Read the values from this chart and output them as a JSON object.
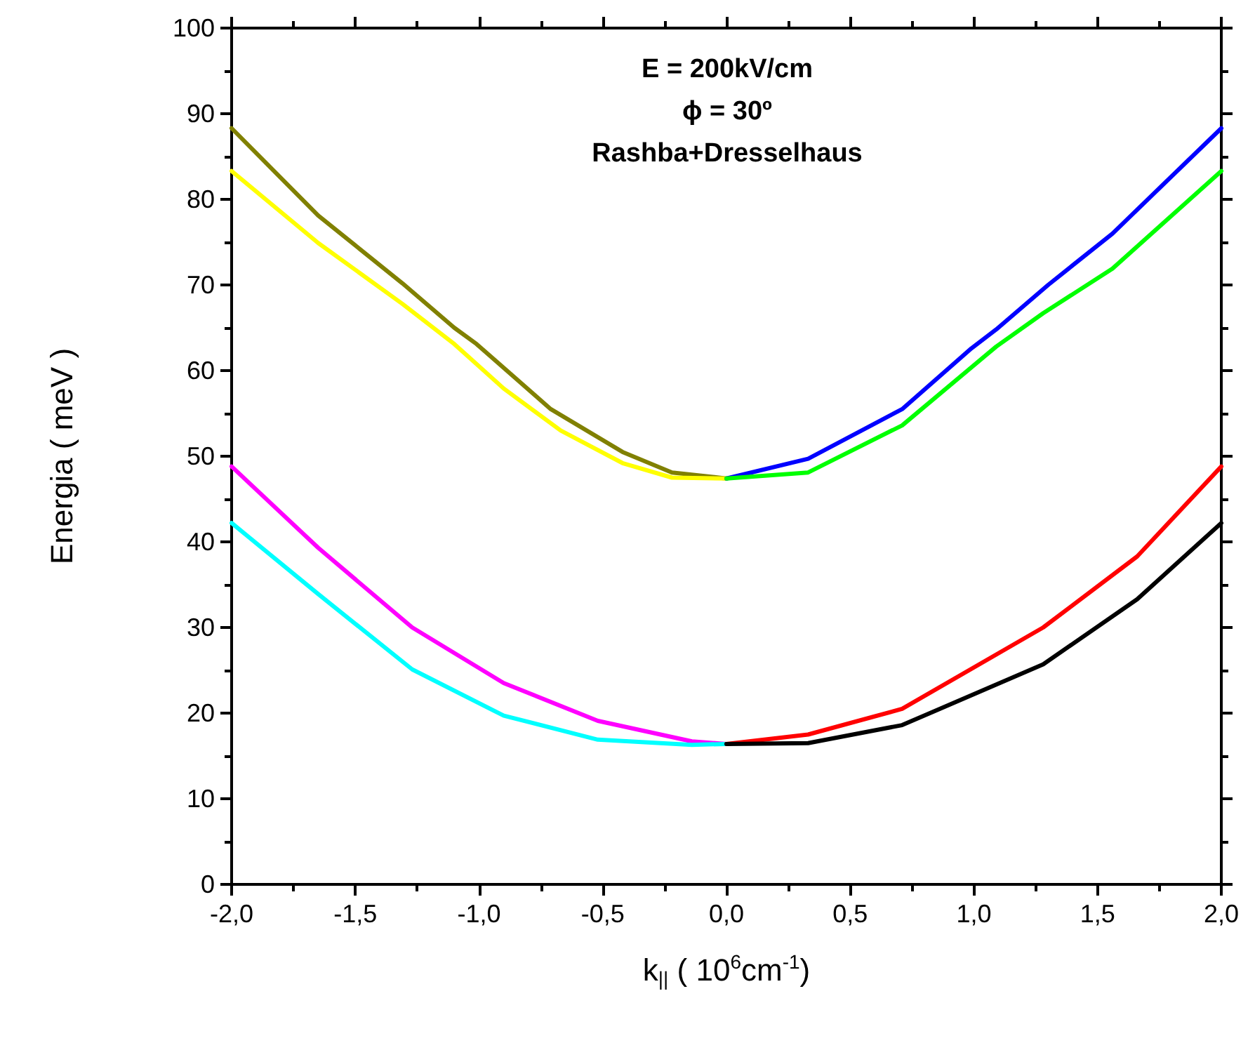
{
  "chart_data": {
    "type": "line",
    "xlabel": "k$_{||}$ ( 10$^{6}$cm$^{-1}$)",
    "ylabel": "Energia ( meV )",
    "annotations": [
      "E = 200kV/cm",
      "ϕ = 30º",
      "Rashba+Dresselhaus"
    ],
    "xlim": [
      -2,
      2
    ],
    "ylim": [
      0,
      100
    ],
    "xticks": [
      {
        "value": -2,
        "label": "-2,0"
      },
      {
        "value": -1.5,
        "label": "-1,5"
      },
      {
        "value": -1,
        "label": "-1,0"
      },
      {
        "value": -0.5,
        "label": "-0,5"
      },
      {
        "value": 0,
        "label": "0,0"
      },
      {
        "value": 0.5,
        "label": "0,5"
      },
      {
        "value": 1,
        "label": "1,0"
      },
      {
        "value": 1.5,
        "label": "1,5"
      },
      {
        "value": 2,
        "label": "2,0"
      }
    ],
    "yticks": [
      0,
      10,
      20,
      30,
      40,
      50,
      60,
      70,
      80,
      90,
      100
    ],
    "grid": false,
    "legend": false,
    "marker": "none",
    "line_style": "solid",
    "series": [
      {
        "color": "#808000",
        "x": [
          -2,
          -1.65,
          -1.31,
          -1.1,
          -1.01,
          -0.71,
          -0.42,
          -0.22,
          0
        ],
        "values": [
          88.3,
          78.1,
          70.2,
          65.0,
          63.1,
          55.5,
          50.5,
          48.1,
          47.4
        ]
      },
      {
        "color": "#ffff00",
        "x": [
          -2,
          -1.65,
          -1.31,
          -1.1,
          -0.9,
          -0.67,
          -0.42,
          -0.22,
          0
        ],
        "values": [
          83.3,
          74.9,
          67.8,
          63.1,
          57.9,
          53.0,
          49.2,
          47.5,
          47.4
        ]
      },
      {
        "color": "#0000ff",
        "x": [
          0,
          0.33,
          0.71,
          0.99,
          1.09,
          1.3,
          1.56,
          2
        ],
        "values": [
          47.4,
          49.7,
          55.5,
          62.6,
          64.8,
          70.0,
          76.0,
          88.3
        ]
      },
      {
        "color": "#00ff00",
        "x": [
          0,
          0.33,
          0.71,
          1.09,
          1.28,
          1.56,
          2
        ],
        "values": [
          47.4,
          48.1,
          53.6,
          62.8,
          66.7,
          71.9,
          83.3
        ]
      },
      {
        "color": "#ff00ff",
        "x": [
          -2,
          -1.65,
          -1.27,
          -0.9,
          -0.52,
          -0.14,
          0
        ],
        "values": [
          48.8,
          39.3,
          30.0,
          23.5,
          19.1,
          16.7,
          16.4
        ]
      },
      {
        "color": "#00ffff",
        "x": [
          -2,
          -1.65,
          -1.27,
          -0.9,
          -0.52,
          -0.14,
          0
        ],
        "values": [
          42.2,
          33.9,
          25.1,
          19.7,
          16.9,
          16.3,
          16.4
        ]
      },
      {
        "color": "#ff0000",
        "x": [
          0,
          0.33,
          0.71,
          1.28,
          1.66,
          2
        ],
        "values": [
          16.4,
          17.5,
          20.5,
          30.0,
          38.3,
          48.8
        ]
      },
      {
        "color": "#000000",
        "x": [
          0,
          0.33,
          0.71,
          1.28,
          1.66,
          2
        ],
        "values": [
          16.4,
          16.5,
          18.6,
          25.7,
          33.3,
          42.2
        ]
      }
    ]
  }
}
